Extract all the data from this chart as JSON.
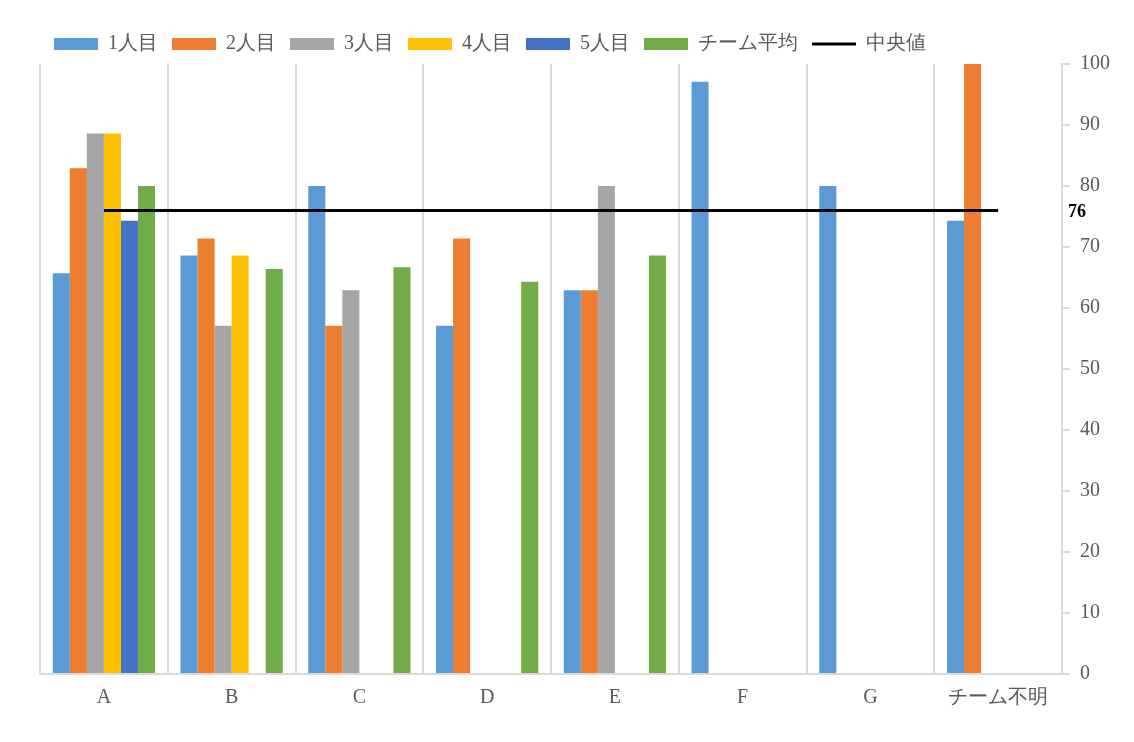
{
  "chart_data": {
    "type": "bar",
    "categories": [
      "A",
      "B",
      "C",
      "D",
      "E",
      "F",
      "G",
      "チーム不明"
    ],
    "series": [
      {
        "name": "1人目",
        "color": "#5b9bd5",
        "values": [
          65.7,
          68.6,
          80,
          57.1,
          62.9,
          97.1,
          80,
          74.3
        ]
      },
      {
        "name": "2人目",
        "color": "#ed7d31",
        "values": [
          82.9,
          71.4,
          57.1,
          71.4,
          62.9,
          null,
          null,
          100
        ]
      },
      {
        "name": "3人目",
        "color": "#a5a5a5",
        "values": [
          88.6,
          57.1,
          62.9,
          null,
          80,
          null,
          null,
          null
        ]
      },
      {
        "name": "4人目",
        "color": "#ffc000",
        "values": [
          88.6,
          68.6,
          null,
          null,
          null,
          null,
          null,
          null
        ]
      },
      {
        "name": "5人目",
        "color": "#4472c4",
        "values": [
          74.3,
          null,
          null,
          null,
          null,
          null,
          null,
          null
        ]
      },
      {
        "name": "チーム平均",
        "color": "#70ad47",
        "values": [
          80,
          66.4,
          66.7,
          64.3,
          68.6,
          null,
          null,
          null
        ]
      },
      {
        "name": "中央値",
        "type": "line",
        "color": "#000000",
        "values": [
          76,
          76,
          76,
          76,
          76,
          76,
          76,
          76
        ]
      }
    ],
    "annotations": [
      "76"
    ],
    "ylim": [
      0,
      100
    ],
    "yticks": [
      0,
      10,
      20,
      30,
      40,
      50,
      60,
      70,
      80,
      90,
      100
    ],
    "grid": "x",
    "legend": "top left",
    "marker": "none"
  }
}
